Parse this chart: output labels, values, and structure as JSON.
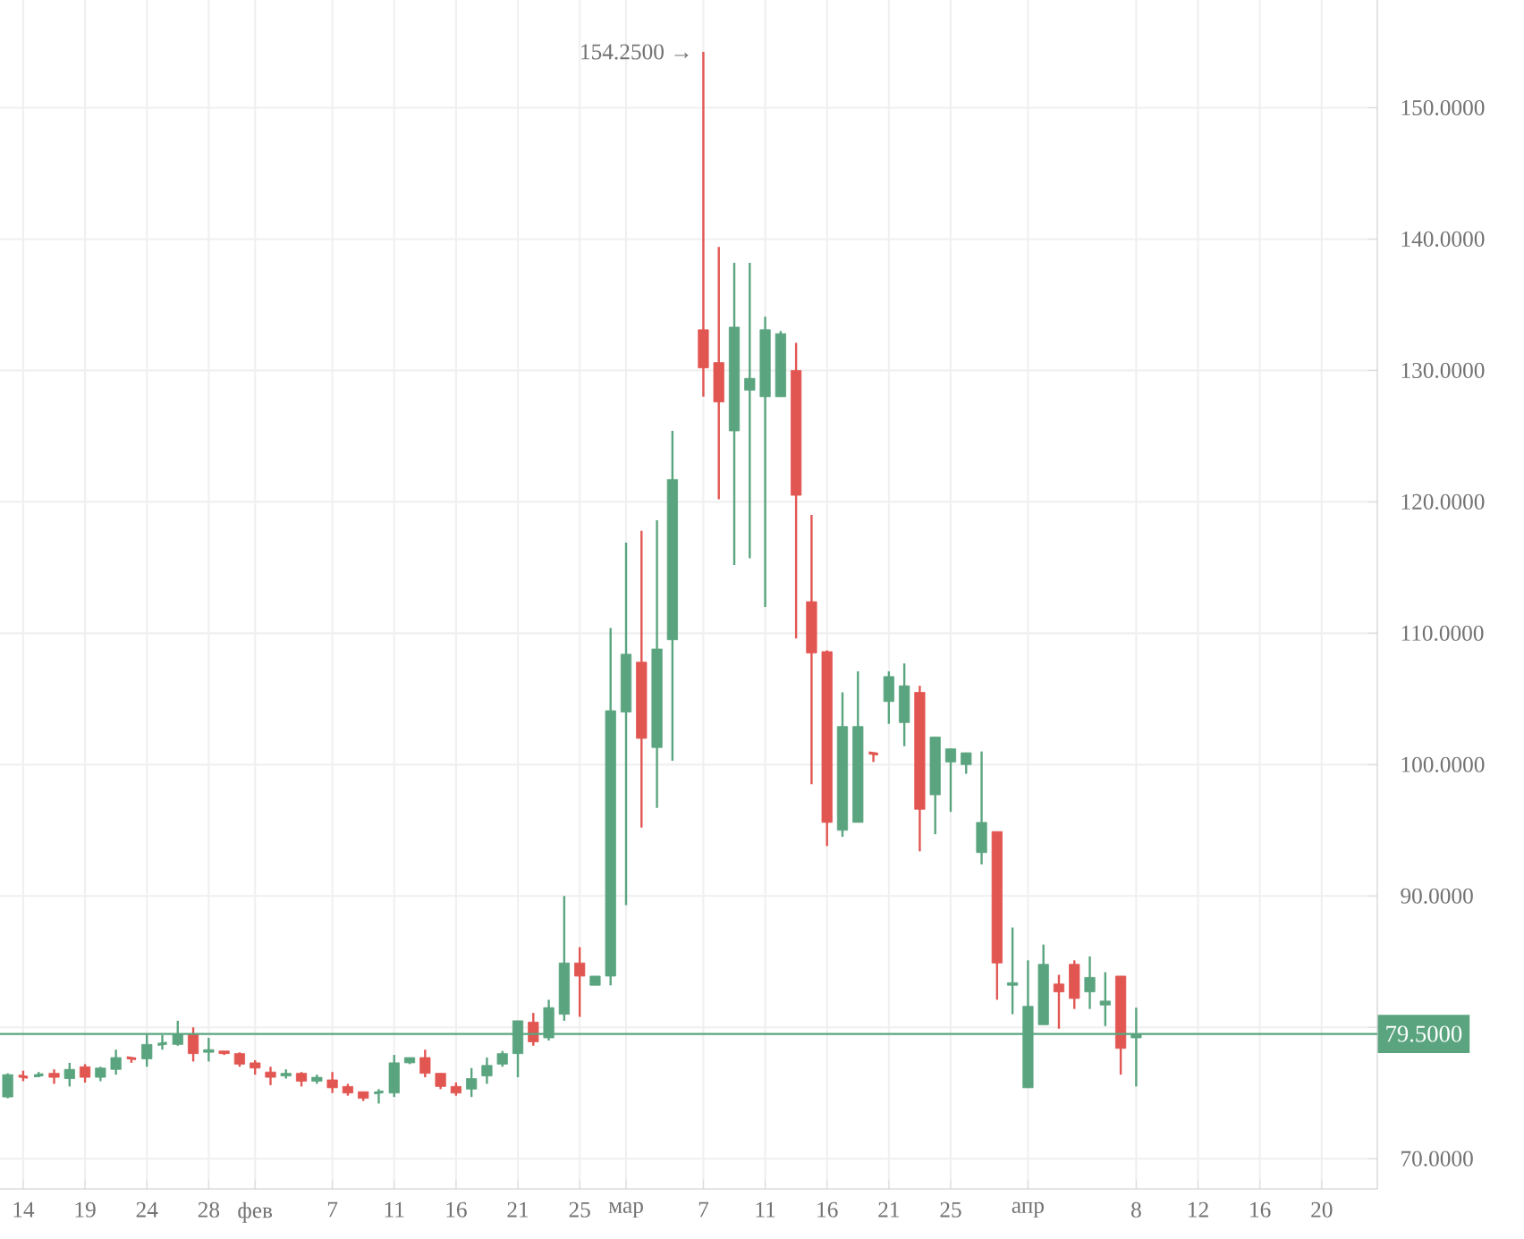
{
  "chart_data": {
    "type": "candlestick",
    "categories": [
      null,
      "14",
      null,
      null,
      null,
      "19",
      null,
      null,
      null,
      "24",
      null,
      null,
      null,
      "28",
      null,
      null,
      "фев",
      null,
      null,
      null,
      null,
      "7",
      null,
      null,
      null,
      "11",
      null,
      null,
      null,
      "16",
      null,
      null,
      null,
      "21",
      null,
      null,
      null,
      "25",
      null,
      null,
      "мар",
      null,
      null,
      null,
      null,
      "7",
      null,
      null,
      null,
      "11",
      null,
      null,
      null,
      "16",
      null,
      null,
      null,
      "21",
      null,
      null,
      null,
      "25",
      null,
      null,
      null,
      null,
      "апр",
      null,
      null,
      null,
      null,
      null,
      null,
      "8",
      null,
      null,
      null,
      "12",
      null,
      null,
      null,
      "16",
      null,
      null,
      null,
      "20"
    ],
    "ohlc": [
      [
        74.7,
        76.5,
        74.6,
        76.4
      ],
      [
        76.3,
        76.7,
        75.9,
        76.2
      ],
      [
        76.3,
        76.6,
        76.2,
        76.4
      ],
      [
        76.5,
        76.8,
        75.7,
        76.2
      ],
      [
        76.1,
        77.3,
        75.5,
        76.8
      ],
      [
        77.0,
        77.2,
        75.8,
        76.2
      ],
      [
        76.2,
        77.0,
        75.9,
        76.9
      ],
      [
        76.8,
        78.3,
        76.4,
        77.7
      ],
      [
        77.7,
        77.7,
        77.3,
        77.6
      ],
      [
        77.6,
        79.5,
        77.0,
        78.7
      ],
      [
        78.7,
        79.4,
        78.3,
        78.8
      ],
      [
        78.7,
        80.5,
        78.6,
        79.5
      ],
      [
        79.5,
        80.0,
        77.4,
        78.0
      ],
      [
        78.1,
        79.2,
        77.4,
        78.3
      ],
      [
        78.2,
        78.2,
        77.9,
        78.0
      ],
      [
        78.0,
        78.1,
        77.0,
        77.2
      ],
      [
        77.3,
        77.5,
        76.4,
        76.9
      ],
      [
        76.6,
        77.0,
        75.6,
        76.2
      ],
      [
        76.3,
        76.8,
        76.1,
        76.5
      ],
      [
        76.5,
        76.6,
        75.5,
        75.9
      ],
      [
        75.9,
        76.4,
        75.7,
        76.2
      ],
      [
        76.0,
        76.6,
        75.0,
        75.4
      ],
      [
        75.5,
        75.7,
        74.8,
        75.0
      ],
      [
        75.1,
        75.1,
        74.4,
        74.6
      ],
      [
        75.0,
        75.3,
        74.2,
        75.1
      ],
      [
        75.0,
        77.9,
        74.7,
        77.3
      ],
      [
        77.3,
        77.7,
        77.2,
        77.7
      ],
      [
        77.7,
        78.3,
        76.2,
        76.5
      ],
      [
        76.5,
        76.5,
        75.3,
        75.5
      ],
      [
        75.5,
        75.8,
        74.8,
        75.0
      ],
      [
        75.3,
        76.9,
        74.7,
        76.1
      ],
      [
        76.3,
        77.7,
        75.7,
        77.1
      ],
      [
        77.2,
        78.2,
        77.0,
        78.0
      ],
      [
        78.0,
        80.5,
        76.2,
        80.5
      ],
      [
        80.4,
        81.1,
        78.6,
        78.9
      ],
      [
        79.2,
        82.1,
        79.0,
        81.5
      ],
      [
        81.0,
        90.0,
        80.5,
        84.9
      ],
      [
        84.9,
        86.1,
        80.8,
        83.9
      ],
      [
        83.2,
        83.9,
        83.2,
        83.9
      ],
      [
        83.9,
        110.4,
        83.2,
        104.1
      ],
      [
        104.0,
        116.9,
        89.3,
        108.4
      ],
      [
        107.8,
        117.8,
        95.2,
        102.0
      ],
      [
        101.3,
        118.6,
        96.7,
        108.8
      ],
      [
        109.5,
        125.4,
        100.3,
        121.7
      ],
      null,
      [
        133.1,
        154.25,
        128.0,
        130.2
      ],
      [
        130.6,
        139.4,
        120.2,
        127.6
      ],
      [
        125.4,
        138.2,
        115.2,
        133.3
      ],
      [
        128.5,
        138.2,
        115.7,
        129.4
      ],
      [
        128.0,
        134.1,
        112.0,
        133.1
      ],
      [
        128.0,
        133.0,
        128.0,
        132.8
      ],
      [
        130.0,
        132.1,
        109.6,
        120.5
      ],
      [
        112.4,
        119.0,
        98.5,
        108.5
      ],
      [
        108.6,
        108.7,
        93.8,
        95.6
      ],
      [
        95.0,
        105.5,
        94.5,
        102.9
      ],
      [
        95.6,
        107.1,
        95.6,
        102.9
      ],
      [
        100.9,
        100.9,
        100.2,
        100.8
      ],
      [
        104.8,
        107.1,
        103.1,
        106.7
      ],
      [
        103.2,
        107.7,
        101.4,
        106.0
      ],
      [
        105.5,
        106.0,
        93.4,
        96.6
      ],
      [
        97.7,
        102.1,
        94.7,
        102.1
      ],
      [
        100.2,
        101.2,
        96.4,
        101.2
      ],
      [
        100.0,
        100.9,
        99.3,
        100.9
      ],
      [
        93.3,
        101.0,
        92.4,
        95.6
      ],
      [
        94.9,
        94.9,
        82.1,
        84.9
      ],
      [
        83.2,
        87.6,
        81.0,
        83.4
      ],
      [
        75.4,
        85.1,
        75.4,
        81.6
      ],
      [
        80.2,
        86.3,
        80.2,
        84.8
      ],
      [
        83.3,
        84.0,
        79.9,
        82.7
      ],
      [
        84.8,
        85.1,
        81.4,
        82.2
      ],
      [
        82.7,
        85.4,
        81.4,
        83.8
      ],
      [
        81.7,
        84.2,
        80.1,
        82.0
      ],
      [
        83.9,
        83.9,
        76.4,
        78.4
      ],
      [
        79.2,
        81.5,
        75.5,
        79.5
      ],
      null,
      null,
      null,
      null,
      null,
      null,
      null,
      null,
      null,
      null,
      null,
      null
    ],
    "colors": [
      "#5aa57f",
      "#e25652",
      "#5aa57f",
      "#e25652",
      "#5aa57f",
      "#e25652",
      "#5aa57f",
      "#5aa57f",
      "#e25652",
      "#5aa57f",
      "#5aa57f",
      "#5aa57f",
      "#e25652",
      "#5aa57f",
      "#e25652",
      "#e25652",
      "#e25652",
      "#e25652",
      "#5aa57f",
      "#e25652",
      "#5aa57f",
      "#e25652",
      "#e25652",
      "#e25652",
      "#5aa57f",
      "#5aa57f",
      "#5aa57f",
      "#e25652",
      "#e25652",
      "#e25652",
      "#5aa57f",
      "#5aa57f",
      "#5aa57f",
      "#5aa57f",
      "#e25652",
      "#5aa57f",
      "#5aa57f",
      "#e25652",
      "#5aa57f",
      "#5aa57f",
      "#5aa57f",
      "#e25652",
      "#5aa57f",
      "#5aa57f",
      null,
      "#e25652",
      "#e25652",
      "#5aa57f",
      "#5aa57f",
      "#5aa57f",
      "#5aa57f",
      "#e25652",
      "#e25652",
      "#e25652",
      "#5aa57f",
      "#5aa57f",
      "#e25652",
      "#5aa57f",
      "#5aa57f",
      "#e25652",
      "#5aa57f",
      "#5aa57f",
      "#5aa57f",
      "#5aa57f",
      "#e25652",
      "#5aa57f",
      "#5aa57f",
      "#5aa57f",
      "#e25652",
      "#e25652",
      "#5aa57f",
      "#5aa57f",
      "#e25652",
      "#5aa57f",
      null,
      null,
      null,
      null,
      null,
      null,
      null,
      null,
      null,
      null,
      null,
      null
    ],
    "ylim": [
      67.7,
      158.2
    ],
    "yticks": [
      {
        "value": 70,
        "label": "70.0000"
      },
      {
        "value": 80,
        "label": null
      },
      {
        "value": 90,
        "label": "90.0000"
      },
      {
        "value": 100,
        "label": "100.0000"
      },
      {
        "value": 110,
        "label": "110.0000"
      },
      {
        "value": 120,
        "label": "120.0000"
      },
      {
        "value": 130,
        "label": "130.0000"
      },
      {
        "value": 140,
        "label": "140.0000"
      },
      {
        "value": 150,
        "label": "150.0000"
      }
    ],
    "grid": true,
    "ref_lines": [
      {
        "axis": "y",
        "value": 79.5,
        "label": "79.5000",
        "color": "#5aa57f"
      }
    ],
    "annotations": [
      "154.2500 →"
    ]
  }
}
